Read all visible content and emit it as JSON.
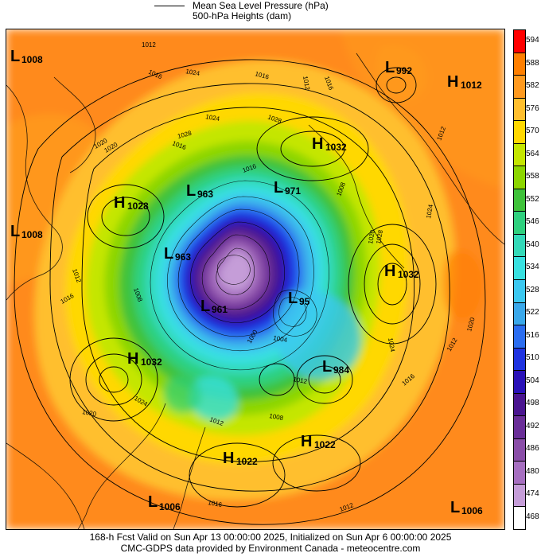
{
  "legend": {
    "mslp_label": "Mean Sea Level Pressure (hPa)",
    "height_label": "500-hPa Heights (dam)"
  },
  "colorbar": {
    "levels": [
      "594",
      "588",
      "582",
      "576",
      "570",
      "564",
      "558",
      "552",
      "546",
      "540",
      "534",
      "528",
      "522",
      "516",
      "510",
      "504",
      "498",
      "492",
      "486",
      "480",
      "474",
      "468"
    ],
    "colors": [
      "#ff0000",
      "#ff7f00",
      "#ff9a1f",
      "#ffbf2e",
      "#ffd800",
      "#c4e600",
      "#8cd600",
      "#3fc23a",
      "#2fd07e",
      "#33d9b8",
      "#38e0e0",
      "#3cc8f0",
      "#3aa8ea",
      "#2b6df0",
      "#1f33e0",
      "#2a12b8",
      "#4a1590",
      "#6a2e98",
      "#8a4ea8",
      "#a66fc0",
      "#c59dd8",
      "#ffffff"
    ]
  },
  "map": {
    "systems": [
      {
        "type": "L",
        "value": "1008"
      },
      {
        "type": "L",
        "value": "992"
      },
      {
        "type": "H",
        "value": "1012"
      },
      {
        "type": "H",
        "value": "1032"
      },
      {
        "type": "H",
        "value": "1028"
      },
      {
        "type": "L",
        "value": "963"
      },
      {
        "type": "L",
        "value": "971"
      },
      {
        "type": "L",
        "value": "1008"
      },
      {
        "type": "L",
        "value": "963"
      },
      {
        "type": "H",
        "value": "1032"
      },
      {
        "type": "L",
        "value": "961"
      },
      {
        "type": "L",
        "value": "95"
      },
      {
        "type": "H",
        "value": "1032"
      },
      {
        "type": "L",
        "value": "984"
      },
      {
        "type": "H",
        "value": "1022"
      },
      {
        "type": "H",
        "value": "1022"
      },
      {
        "type": "L",
        "value": "1006"
      },
      {
        "type": "L",
        "value": "1006"
      }
    ],
    "isobar_labels": [
      "1012",
      "1016",
      "1020",
      "1024",
      "1028",
      "1016",
      "1024",
      "1016",
      "1020",
      "1016",
      "1012",
      "1008",
      "1028",
      "1012",
      "1016",
      "1020",
      "1024",
      "1028",
      "1024",
      "1020",
      "1012",
      "1016",
      "1016",
      "1020",
      "1024",
      "1012",
      "1008",
      "1012",
      "1004",
      "1000",
      "1012",
      "1016",
      "1008",
      "1012"
    ]
  },
  "footer": {
    "line1": "168-h Fcst Valid on Sun Apr 13 00:00:00 2025, Initialized on Sun Apr  6 00:00:00 2025",
    "line2": "CMC-GDPS data provided by Environment Canada - meteocentre.com"
  }
}
